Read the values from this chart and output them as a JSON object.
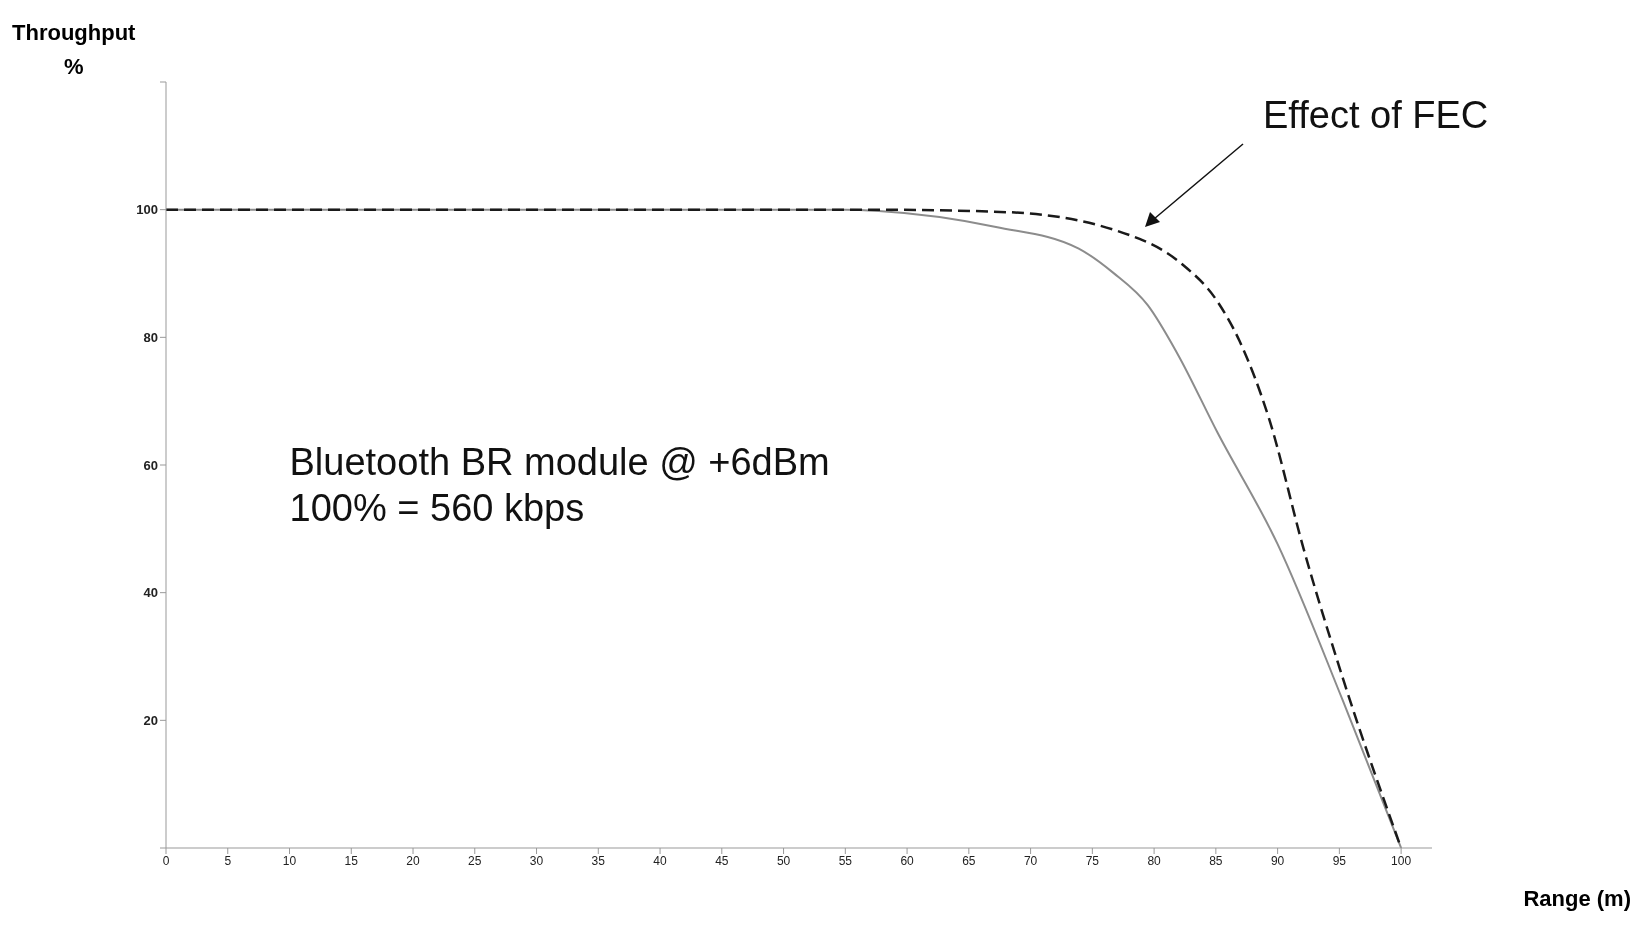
{
  "chart_data": {
    "type": "line",
    "ylabel": "Throughput\n%",
    "xlabel": "Range (m)",
    "xlim": [
      0,
      102.5
    ],
    "xticks": [
      0,
      5,
      10,
      15,
      20,
      25,
      30,
      35,
      40,
      45,
      50,
      55,
      60,
      65,
      70,
      75,
      80,
      85,
      90,
      95,
      100
    ],
    "ylim": [
      0,
      120
    ],
    "yticks": [
      {
        "value": 0,
        "label": null
      },
      20,
      40,
      60,
      80,
      100,
      {
        "value": 120,
        "label": null
      }
    ],
    "marker": "none",
    "series": [
      {
        "color": "#8c8c8c",
        "line_style": "solid",
        "x": [
          0,
          55,
          57.7,
          67.2,
          73.9,
          76.7,
          79.5,
          81.9,
          85.1,
          90,
          95.3,
          100
        ],
        "values": [
          100,
          100,
          99.8,
          97.3,
          93.9,
          90.1,
          85,
          77.4,
          65.2,
          47.6,
          23,
          0
        ]
      },
      {
        "color": "#1a1a1a",
        "line_style": "dashed",
        "x": [
          0,
          57.5,
          68.2,
          79.2,
          82.3,
          85.1,
          86.9,
          89.3,
          92.1,
          95.3,
          100
        ],
        "values": [
          100,
          100,
          99.6,
          95.1,
          91.4,
          85.7,
          79.5,
          67.3,
          46.9,
          26.5,
          0
        ]
      }
    ],
    "annotations": [
      "Effect of FEC",
      "Bluetooth BR module @ +6dBm",
      "100% = 560 kbps"
    ]
  }
}
